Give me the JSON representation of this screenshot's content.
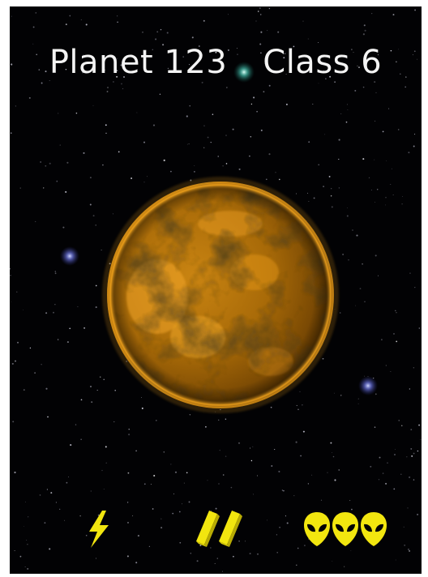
{
  "header": {
    "planet_label": "Planet 123",
    "class_label": "Class 6"
  },
  "colors": {
    "space": "#020204",
    "title_text": "#f4f4f4",
    "planet_light": "#f0a21c",
    "planet_dark": "#1a0e02",
    "hud_yellow": "#f2e60f"
  },
  "hud": {
    "energy": {
      "icon": "lightning-bolt-icon",
      "count": 1
    },
    "fuel": {
      "icon": "fuel-bar-icon",
      "count": 2
    },
    "crew": {
      "icon": "alien-head-icon",
      "count": 3
    }
  }
}
